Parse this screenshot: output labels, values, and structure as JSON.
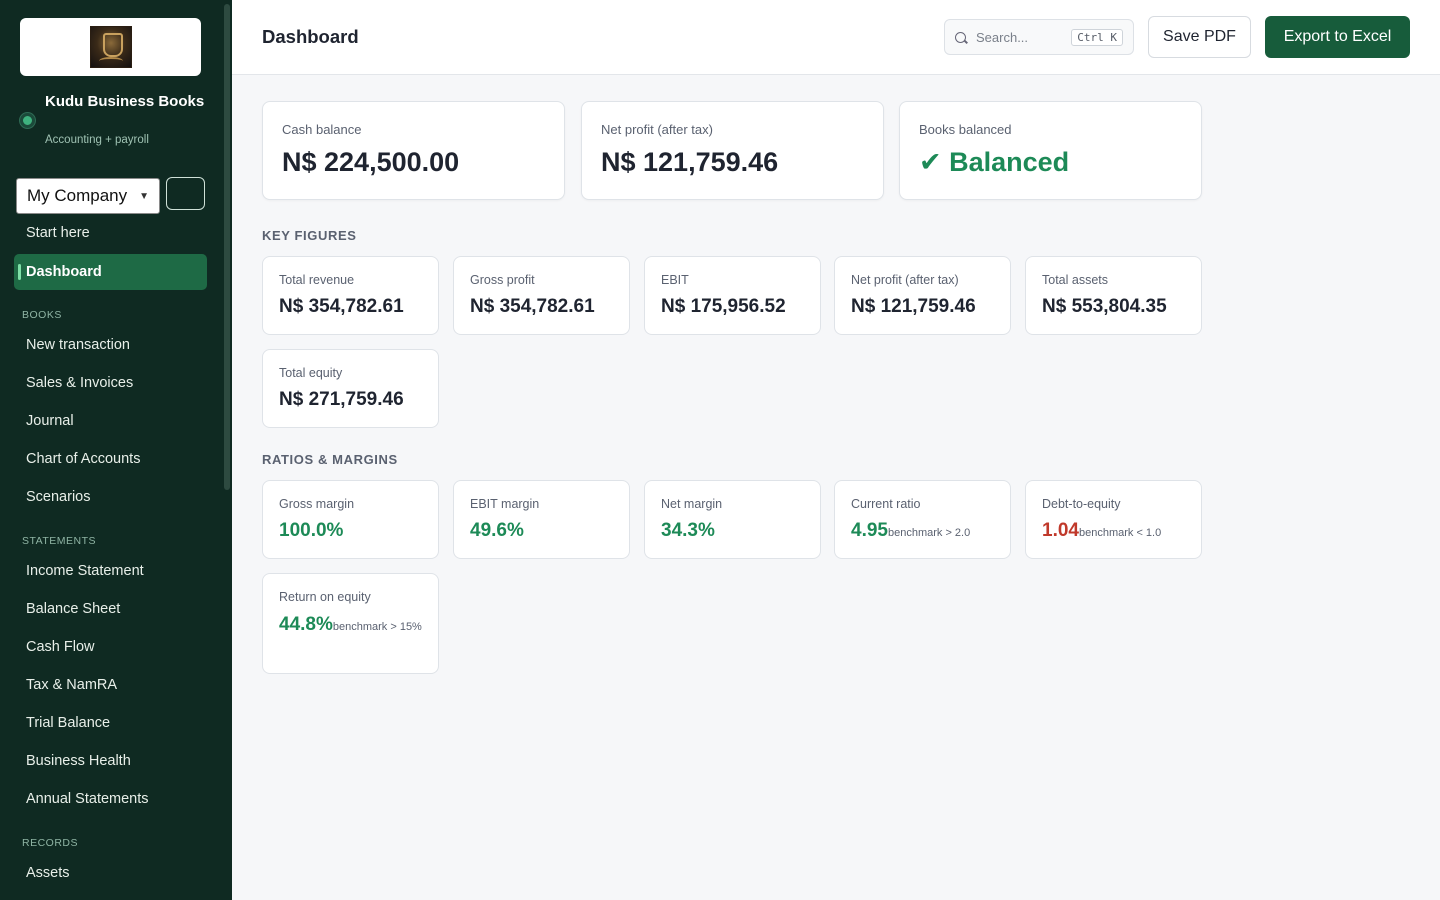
{
  "sidebar": {
    "brand_name": "Kudu Business Books",
    "brand_sub": "Accounting + payroll",
    "company_select": "My Company",
    "nav_top": [
      {
        "label": "Start here"
      },
      {
        "label": "Dashboard",
        "active": true
      }
    ],
    "sections": {
      "books": "BOOKS",
      "statements": "STATEMENTS",
      "records": "RECORDS"
    },
    "books_items": [
      {
        "label": "New transaction"
      },
      {
        "label": "Sales & Invoices"
      },
      {
        "label": "Journal"
      },
      {
        "label": "Chart of Accounts"
      },
      {
        "label": "Scenarios"
      }
    ],
    "statements_items": [
      {
        "label": "Income Statement"
      },
      {
        "label": "Balance Sheet"
      },
      {
        "label": "Cash Flow"
      },
      {
        "label": "Tax & NamRA"
      },
      {
        "label": "Trial Balance"
      },
      {
        "label": "Business Health"
      },
      {
        "label": "Annual Statements"
      }
    ],
    "records_items": [
      {
        "label": "Assets"
      }
    ]
  },
  "header": {
    "title": "Dashboard",
    "search_placeholder": "Search...",
    "search_shortcut": "Ctrl K",
    "save_pdf": "Save PDF",
    "export_excel": "Export to Excel"
  },
  "summary": [
    {
      "label": "Cash balance",
      "value": "N$ 224,500.00"
    },
    {
      "label": "Net profit (after tax)",
      "value": "N$ 121,759.46"
    },
    {
      "label": "Books balanced",
      "value": "✔ Balanced"
    }
  ],
  "key_figures": {
    "title": "KEY FIGURES",
    "items": [
      {
        "label": "Total revenue",
        "value": "N$ 354,782.61"
      },
      {
        "label": "Gross profit",
        "value": "N$ 354,782.61"
      },
      {
        "label": "EBIT",
        "value": "N$ 175,956.52"
      },
      {
        "label": "Net profit (after tax)",
        "value": "N$ 121,759.46"
      },
      {
        "label": "Total assets",
        "value": "N$ 553,804.35"
      },
      {
        "label": "Total equity",
        "value": "N$ 271,759.46"
      }
    ]
  },
  "ratios": {
    "title": "RATIOS & MARGINS",
    "items": [
      {
        "label": "Gross margin",
        "value": "100.0%",
        "benchmark": ""
      },
      {
        "label": "EBIT margin",
        "value": "49.6%",
        "benchmark": ""
      },
      {
        "label": "Net margin",
        "value": "34.3%",
        "benchmark": ""
      },
      {
        "label": "Current ratio",
        "value": "4.95",
        "benchmark": "benchmark > 2.0"
      },
      {
        "label": "Debt-to-equity",
        "value": "1.04",
        "benchmark": "benchmark < 1.0"
      },
      {
        "label": "Return on equity",
        "value": "44.8%",
        "benchmark": "benchmark > 15%"
      }
    ]
  },
  "colors": {
    "sidebar_bg": "#0f2a22",
    "accent": "#175c3b",
    "good": "#1d8a57",
    "bad": "#c0392b"
  }
}
